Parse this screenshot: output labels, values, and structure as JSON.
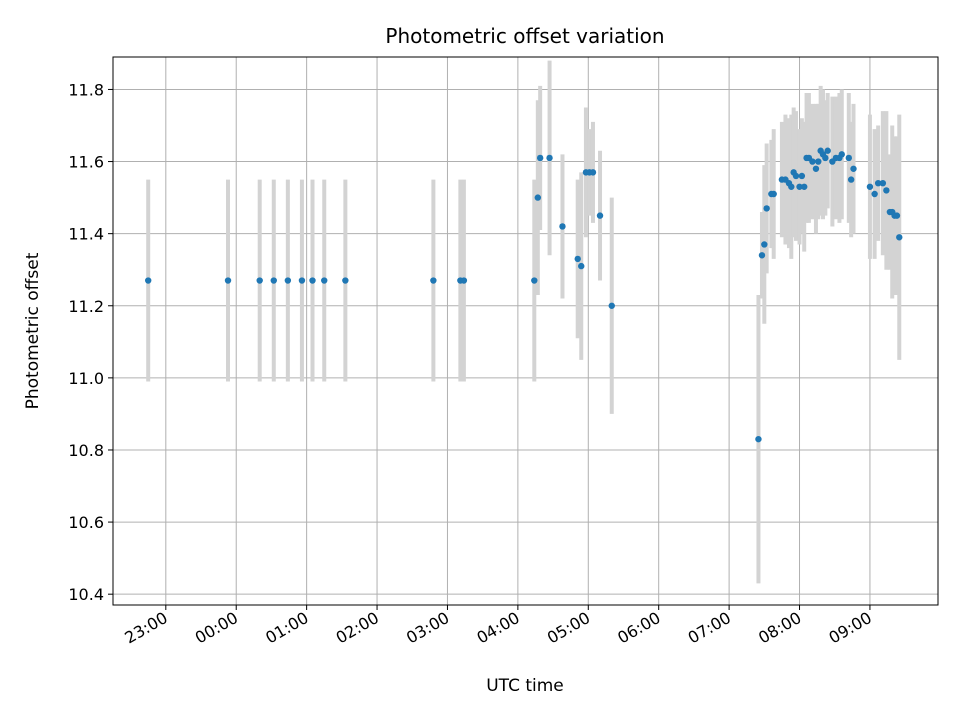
{
  "chart_data": {
    "type": "scatter",
    "title": "Photometric offset variation",
    "xlabel": "UTC time",
    "ylabel": "Photometric offset",
    "x_tick_labels": [
      "23:00",
      "00:00",
      "01:00",
      "02:00",
      "03:00",
      "04:00",
      "05:00",
      "06:00",
      "07:00",
      "08:00",
      "09:00"
    ],
    "y_tick_labels": [
      "10.4",
      "10.6",
      "10.8",
      "11.0",
      "11.2",
      "11.4",
      "11.6",
      "11.8"
    ],
    "xlim": [
      "22:15",
      "09:58"
    ],
    "ylim": [
      10.37,
      11.89
    ],
    "grid": true,
    "colors": {
      "marker": "#1f77b4",
      "errorbar": "#d3d3d3",
      "grid": "#b0b0b0"
    },
    "series": [
      {
        "x": [
          "22:45",
          "23:53",
          "00:20",
          "00:32",
          "00:44",
          "00:56",
          "01:05",
          "01:15",
          "01:33",
          "02:48",
          "03:11",
          "03:14",
          "04:14",
          "04:17",
          "04:19",
          "04:27",
          "04:38",
          "04:51",
          "04:54",
          "04:58",
          "05:01",
          "05:04",
          "05:10",
          "05:20",
          "07:25",
          "07:28",
          "07:30",
          "07:32",
          "07:36",
          "07:38",
          "07:45",
          "07:48",
          "07:51",
          "07:53",
          "07:55",
          "07:57",
          "08:00",
          "08:02",
          "08:04",
          "08:06",
          "08:08",
          "08:11",
          "08:14",
          "08:16",
          "08:18",
          "08:20",
          "08:22",
          "08:24",
          "08:28",
          "08:31",
          "08:34",
          "08:36",
          "08:42",
          "08:44",
          "08:46",
          "09:00",
          "09:04",
          "09:07",
          "09:11",
          "09:14",
          "09:17",
          "09:19",
          "09:21",
          "09:23",
          "09:25"
        ],
        "y": [
          11.27,
          11.27,
          11.27,
          11.27,
          11.27,
          11.27,
          11.27,
          11.27,
          11.27,
          11.27,
          11.27,
          11.27,
          11.27,
          11.5,
          11.61,
          11.61,
          11.42,
          11.33,
          11.31,
          11.57,
          11.57,
          11.57,
          11.45,
          11.2,
          10.83,
          11.34,
          11.37,
          11.47,
          11.51,
          11.51,
          11.55,
          11.55,
          11.54,
          11.53,
          11.57,
          11.56,
          11.53,
          11.56,
          11.53,
          11.61,
          11.61,
          11.6,
          11.58,
          11.6,
          11.63,
          11.62,
          11.61,
          11.63,
          11.6,
          11.61,
          11.61,
          11.62,
          11.61,
          11.55,
          11.58,
          11.53,
          11.51,
          11.54,
          11.54,
          11.52,
          11.46,
          11.46,
          11.45,
          11.45,
          11.39
        ],
        "yerr": [
          0.28,
          0.28,
          0.28,
          0.28,
          0.28,
          0.28,
          0.28,
          0.28,
          0.28,
          0.28,
          0.28,
          0.28,
          0.28,
          0.27,
          0.2,
          0.27,
          0.2,
          0.22,
          0.26,
          0.18,
          0.12,
          0.14,
          0.18,
          0.3,
          0.4,
          0.12,
          0.22,
          0.18,
          0.15,
          0.18,
          0.16,
          0.18,
          0.18,
          0.2,
          0.18,
          0.18,
          0.16,
          0.16,
          0.18,
          0.18,
          0.18,
          0.16,
          0.18,
          0.16,
          0.18,
          0.18,
          0.16,
          0.16,
          0.18,
          0.17,
          0.18,
          0.18,
          0.18,
          0.16,
          0.18,
          0.2,
          0.18,
          0.16,
          0.2,
          0.22,
          0.16,
          0.24,
          0.22,
          0.22,
          0.34
        ]
      }
    ]
  }
}
